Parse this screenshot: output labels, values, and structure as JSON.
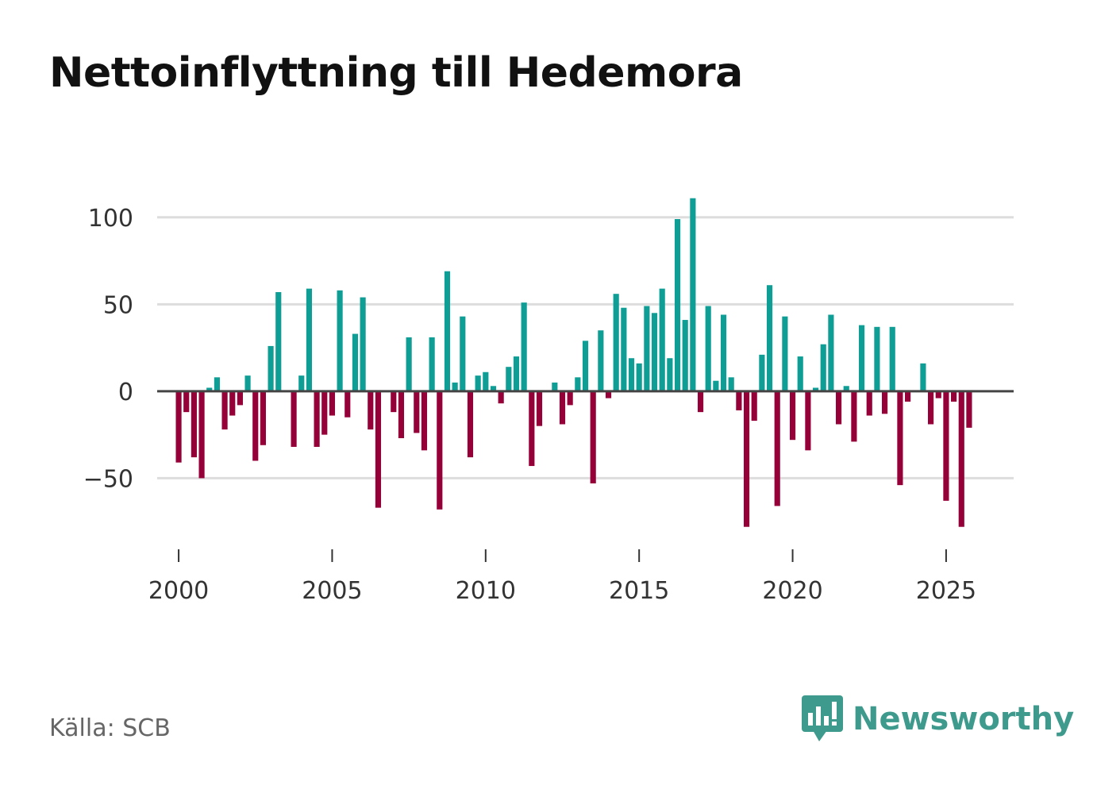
{
  "title": "Nettoinflyttning till Hedemora",
  "source": "Källa: SCB",
  "brand": {
    "name": "Newsworthy",
    "icon": "newsworthy-logo-icon"
  },
  "colors": {
    "positive": "#0e9e95",
    "negative": "#960038",
    "grid": "#dddddd",
    "zero": "#444444",
    "brand": "#3d9a8c"
  },
  "chart_data": {
    "type": "bar",
    "title": "Nettoinflyttning till Hedemora",
    "xlabel": "",
    "ylabel": "",
    "ylim": [
      -90,
      120
    ],
    "xlim": [
      1999.3,
      2027.2
    ],
    "yticks": [
      100,
      50,
      0,
      -50
    ],
    "ytick_labels": [
      "100",
      "50",
      "0",
      "−50"
    ],
    "xticks": [
      2000,
      2005,
      2010,
      2015,
      2020,
      2025
    ],
    "xtick_labels": [
      "2000",
      "2005",
      "2010",
      "2015",
      "2020",
      "2025"
    ],
    "periods": [
      "2000 K1",
      "2000 K2",
      "2000 K3",
      "2000 K4",
      "2001 K1",
      "2001 K2",
      "2001 K3",
      "2001 K4",
      "2002 K1",
      "2002 K2",
      "2002 K3",
      "2002 K4",
      "2003 K1",
      "2003 K2",
      "2003 K3",
      "2003 K4",
      "2004 K1",
      "2004 K2",
      "2004 K3",
      "2004 K4",
      "2005 K1",
      "2005 K2",
      "2005 K3",
      "2005 K4",
      "2006 K1",
      "2006 K2",
      "2006 K3",
      "2006 K4",
      "2007 K1",
      "2007 K2",
      "2007 K3",
      "2007 K4",
      "2008 K1",
      "2008 K2",
      "2008 K3",
      "2008 K4",
      "2009 K1",
      "2009 K2",
      "2009 K3",
      "2009 K4",
      "2010 K1",
      "2010 K2",
      "2010 K3",
      "2010 K4",
      "2011 K1",
      "2011 K2",
      "2011 K3",
      "2011 K4",
      "2012 K1",
      "2012 K2",
      "2012 K3",
      "2012 K4",
      "2013 K1",
      "2013 K2",
      "2013 K3",
      "2013 K4",
      "2014 K1",
      "2014 K2",
      "2014 K3",
      "2014 K4",
      "2015 K1",
      "2015 K2",
      "2015 K3",
      "2015 K4",
      "2016 K1",
      "2016 K2",
      "2016 K3",
      "2016 K4",
      "2017 K1",
      "2017 K2",
      "2017 K3",
      "2017 K4",
      "2018 K1",
      "2018 K2",
      "2018 K3",
      "2018 K4",
      "2019 K1",
      "2019 K2",
      "2019 K3",
      "2019 K4",
      "2020 K1",
      "2020 K2",
      "2020 K3",
      "2020 K4",
      "2021 K1",
      "2021 K2",
      "2021 K3",
      "2021 K4",
      "2022 K1",
      "2022 K2",
      "2022 K3",
      "2022 K4",
      "2023 K1",
      "2023 K2",
      "2023 K3",
      "2023 K4",
      "2024 K1",
      "2024 K2",
      "2024 K3",
      "2024 K4",
      "2025 K1",
      "2025 K2",
      "2025 K3",
      "2025 K4"
    ],
    "values": [
      -41,
      -12,
      -38,
      -50,
      2,
      8,
      -22,
      -14,
      -8,
      9,
      -40,
      -31,
      26,
      57,
      0,
      -32,
      9,
      59,
      -32,
      -25,
      -14,
      58,
      -15,
      33,
      54,
      -22,
      -67,
      0,
      -12,
      -27,
      31,
      -24,
      -34,
      31,
      -68,
      69,
      5,
      43,
      -38,
      9,
      11,
      3,
      -7,
      14,
      20,
      51,
      -43,
      -20,
      0,
      5,
      -19,
      -8,
      8,
      29,
      -53,
      35,
      -4,
      56,
      48,
      19,
      16,
      49,
      45,
      59,
      19,
      99,
      41,
      111,
      -12,
      49,
      6,
      44,
      8,
      -11,
      -78,
      -17,
      21,
      61,
      -66,
      43,
      -28,
      20,
      -34,
      2,
      27,
      44,
      -19,
      3,
      -29,
      38,
      -14,
      37,
      -13,
      37,
      -54,
      -6,
      0,
      16,
      -19,
      -4,
      -63,
      -6,
      -78,
      -21
    ]
  }
}
